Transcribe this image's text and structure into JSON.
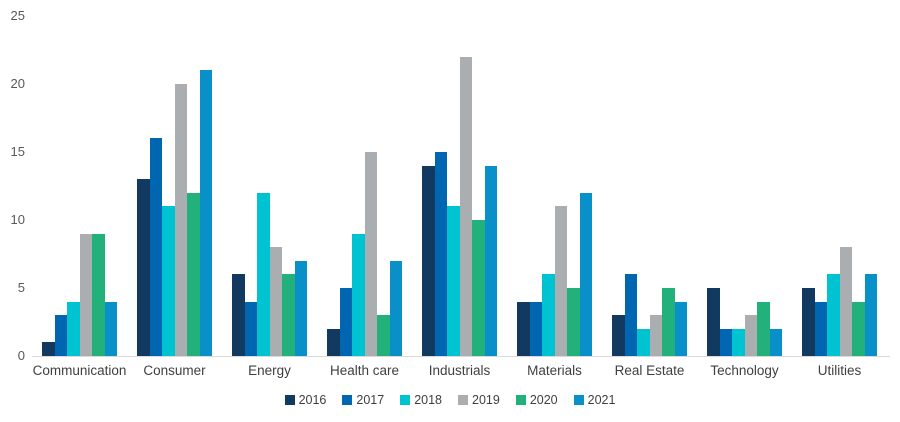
{
  "chart_data": {
    "type": "bar",
    "title": "",
    "xlabel": "",
    "ylabel": "",
    "ylim": [
      0,
      25
    ],
    "y_ticks": [
      0,
      5,
      10,
      15,
      20,
      25
    ],
    "grid": false,
    "legend_position": "bottom",
    "categories": [
      "Communication",
      "Consumer",
      "Energy",
      "Health care",
      "Industrials",
      "Materials",
      "Real Estate",
      "Technology",
      "Utilities"
    ],
    "series": [
      {
        "name": "2016",
        "color": "#12395f",
        "values": [
          1,
          13,
          6,
          2,
          14,
          4,
          3,
          5,
          5
        ]
      },
      {
        "name": "2017",
        "color": "#0066b2",
        "values": [
          3,
          16,
          4,
          5,
          15,
          4,
          6,
          2,
          4
        ]
      },
      {
        "name": "2018",
        "color": "#00c3d2",
        "values": [
          4,
          11,
          12,
          9,
          11,
          6,
          2,
          2,
          6
        ]
      },
      {
        "name": "2019",
        "color": "#aaaeb1",
        "values": [
          9,
          20,
          8,
          15,
          22,
          11,
          3,
          3,
          8
        ]
      },
      {
        "name": "2020",
        "color": "#22b17a",
        "values": [
          9,
          12,
          6,
          3,
          10,
          5,
          5,
          4,
          4
        ]
      },
      {
        "name": "2021",
        "color": "#0a90c8",
        "values": [
          4,
          21,
          7,
          7,
          14,
          12,
          4,
          2,
          6
        ]
      }
    ],
    "axis_line_color": "#d9d9d9",
    "tick_label_color": "#595959",
    "category_label_color": "#3f3f3f"
  }
}
